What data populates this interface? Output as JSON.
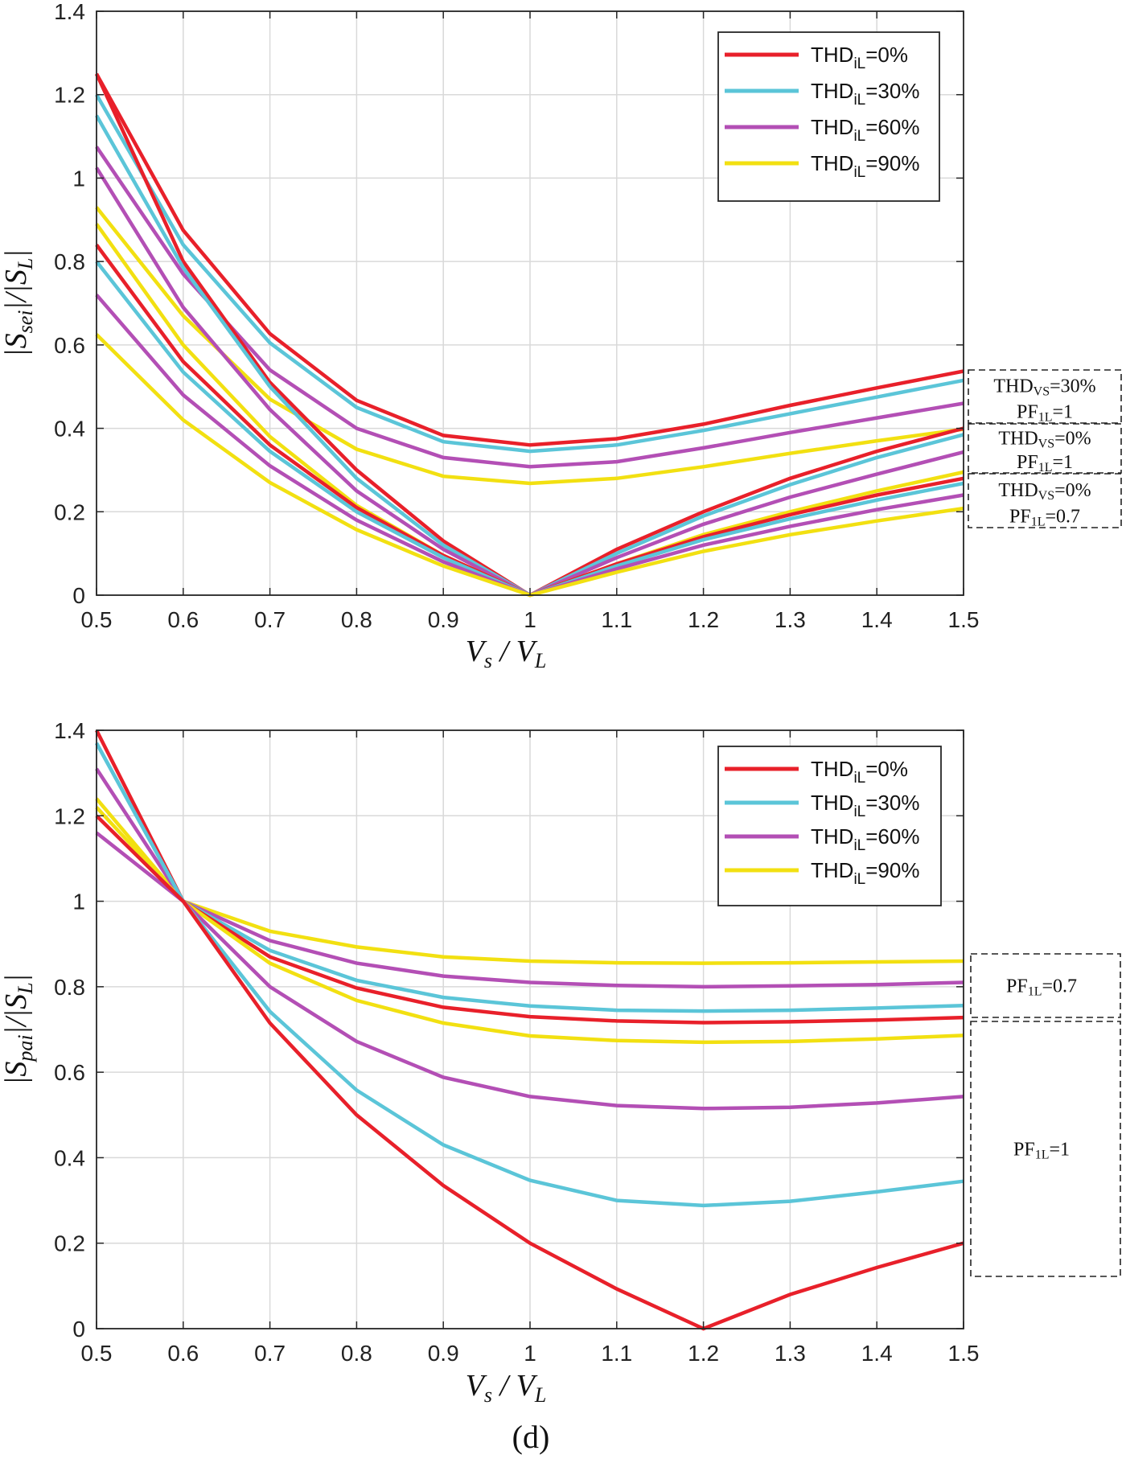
{
  "caption": "(d)",
  "chart_data": [
    {
      "type": "line",
      "xlabel": "V_s / V_L",
      "ylabel": "|S_sei|/|S_L|",
      "xlim": [
        0.5,
        1.5
      ],
      "ylim": [
        0,
        1.4
      ],
      "xticks": [
        "0.5",
        "0.6",
        "0.7",
        "0.8",
        "0.9",
        "1",
        "1.1",
        "1.2",
        "1.3",
        "1.4",
        "1.5"
      ],
      "yticks": [
        "0",
        "0.2",
        "0.4",
        "0.6",
        "0.8",
        "1",
        "1.2",
        "1.4"
      ],
      "grid": true,
      "legend_position": "top-right",
      "legend": [
        {
          "main": "THD",
          "sub": "iL",
          "rest": "=0%",
          "color": "#e8202a"
        },
        {
          "main": "THD",
          "sub": "iL",
          "rest": "=30%",
          "color": "#5bc5d8"
        },
        {
          "main": "THD",
          "sub": "iL",
          "rest": "=60%",
          "color": "#b34fb5"
        },
        {
          "main": "THD",
          "sub": "iL",
          "rest": "=90%",
          "color": "#f2e011"
        }
      ],
      "annotations": [
        {
          "line1_main": "THD",
          "line1_sub": "VS",
          "line1_rest": "=30%",
          "line2_main": "PF",
          "line2_sub": "1L",
          "line2_rest": "=1"
        },
        {
          "line1_main": "THD",
          "line1_sub": "VS",
          "line1_rest": "=0%",
          "line2_main": "PF",
          "line2_sub": "1L",
          "line2_rest": "=1"
        },
        {
          "line1_main": "THD",
          "line1_sub": "VS",
          "line1_rest": "=0%",
          "line2_main": "PF",
          "line2_sub": "1L",
          "line2_rest": "=0.7"
        }
      ],
      "x": [
        0.5,
        0.6,
        0.7,
        0.8,
        0.9,
        1.0,
        1.1,
        1.2,
        1.3,
        1.4,
        1.5
      ],
      "series": [
        {
          "group": "THDvs=30%, PF1L=1",
          "color": "#e8202a",
          "values": [
            1.25,
            0.875,
            0.627,
            0.467,
            0.383,
            0.36,
            0.375,
            0.41,
            0.455,
            0.497,
            0.537
          ]
        },
        {
          "group": "THDvs=30%, PF1L=1",
          "color": "#5bc5d8",
          "values": [
            1.2,
            0.84,
            0.605,
            0.45,
            0.368,
            0.345,
            0.36,
            0.395,
            0.435,
            0.475,
            0.515
          ]
        },
        {
          "group": "THDvs=30%, PF1L=1",
          "color": "#b34fb5",
          "values": [
            1.075,
            0.77,
            0.54,
            0.4,
            0.33,
            0.308,
            0.32,
            0.353,
            0.39,
            0.425,
            0.46
          ]
        },
        {
          "group": "THDvs=30%, PF1L=1",
          "color": "#f2e011",
          "values": [
            0.93,
            0.67,
            0.47,
            0.35,
            0.285,
            0.268,
            0.28,
            0.308,
            0.34,
            0.37,
            0.398
          ]
        },
        {
          "group": "THDvs=0%, PF1L=1",
          "color": "#e8202a",
          "values": [
            1.25,
            0.8,
            0.51,
            0.3,
            0.13,
            0.0,
            0.11,
            0.2,
            0.28,
            0.345,
            0.4
          ]
        },
        {
          "group": "THDvs=0%, PF1L=1",
          "color": "#5bc5d8",
          "values": [
            1.15,
            0.785,
            0.5,
            0.28,
            0.12,
            0.0,
            0.1,
            0.19,
            0.265,
            0.33,
            0.385
          ]
        },
        {
          "group": "THDvs=0%, PF1L=1",
          "color": "#b34fb5",
          "values": [
            1.025,
            0.69,
            0.445,
            0.25,
            0.11,
            0.0,
            0.09,
            0.17,
            0.235,
            0.29,
            0.343
          ]
        },
        {
          "group": "THDvs=0%, PF1L=1",
          "color": "#f2e011",
          "values": [
            0.89,
            0.6,
            0.38,
            0.215,
            0.095,
            0.0,
            0.075,
            0.145,
            0.2,
            0.25,
            0.295
          ]
        },
        {
          "group": "THDvs=0%, PF1L=0.7",
          "color": "#e8202a",
          "values": [
            0.84,
            0.56,
            0.36,
            0.21,
            0.095,
            0.0,
            0.075,
            0.14,
            0.193,
            0.24,
            0.28
          ]
        },
        {
          "group": "THDvs=0%, PF1L=0.7",
          "color": "#5bc5d8",
          "values": [
            0.8,
            0.535,
            0.345,
            0.2,
            0.09,
            0.0,
            0.07,
            0.133,
            0.183,
            0.228,
            0.268
          ]
        },
        {
          "group": "THDvs=0%, PF1L=0.7",
          "color": "#b34fb5",
          "values": [
            0.72,
            0.48,
            0.31,
            0.18,
            0.08,
            0.0,
            0.063,
            0.12,
            0.165,
            0.205,
            0.24
          ]
        },
        {
          "group": "THDvs=0%, PF1L=0.7",
          "color": "#f2e011",
          "values": [
            0.625,
            0.42,
            0.27,
            0.157,
            0.07,
            0.0,
            0.055,
            0.105,
            0.145,
            0.178,
            0.208
          ]
        }
      ]
    },
    {
      "type": "line",
      "xlabel": "V_s / V_L",
      "ylabel": "|S_pai|/|S_L|",
      "xlim": [
        0.5,
        1.5
      ],
      "ylim": [
        0,
        1.4
      ],
      "xticks": [
        "0.5",
        "0.6",
        "0.7",
        "0.8",
        "0.9",
        "1",
        "1.1",
        "1.2",
        "1.3",
        "1.4",
        "1.5"
      ],
      "yticks": [
        "0",
        "0.2",
        "0.4",
        "0.6",
        "0.8",
        "1",
        "1.2",
        "1.4"
      ],
      "grid": true,
      "legend_position": "top-right",
      "legend": [
        {
          "main": "THD",
          "sub": "iL",
          "rest": "=0%",
          "color": "#e8202a"
        },
        {
          "main": "THD",
          "sub": "iL",
          "rest": "=30%",
          "color": "#5bc5d8"
        },
        {
          "main": "THD",
          "sub": "iL",
          "rest": "=60%",
          "color": "#b34fb5"
        },
        {
          "main": "THD",
          "sub": "iL",
          "rest": "=90%",
          "color": "#f2e011"
        }
      ],
      "annotations": [
        {
          "line1_main": "PF",
          "line1_sub": "1L",
          "line1_rest": "=0.7"
        },
        {
          "line1_main": "PF",
          "line1_sub": "1L",
          "line1_rest": "=1"
        }
      ],
      "x": [
        0.5,
        0.6,
        0.7,
        0.8,
        0.9,
        1.0,
        1.1,
        1.2,
        1.3,
        1.4,
        1.5
      ],
      "series": [
        {
          "group": "PF1L=0.7",
          "color": "#f2e011",
          "values": [
            1.24,
            1.0,
            0.93,
            0.893,
            0.87,
            0.86,
            0.856,
            0.855,
            0.856,
            0.858,
            0.86
          ]
        },
        {
          "group": "PF1L=0.7",
          "color": "#b34fb5",
          "values": [
            1.31,
            1.0,
            0.908,
            0.855,
            0.825,
            0.81,
            0.803,
            0.8,
            0.802,
            0.805,
            0.81
          ]
        },
        {
          "group": "PF1L=0.7",
          "color": "#5bc5d8",
          "values": [
            1.37,
            1.0,
            0.885,
            0.815,
            0.775,
            0.755,
            0.745,
            0.743,
            0.745,
            0.75,
            0.756
          ]
        },
        {
          "group": "PF1L=0.7",
          "color": "#e8202a",
          "values": [
            1.4,
            1.0,
            0.87,
            0.797,
            0.752,
            0.73,
            0.72,
            0.716,
            0.718,
            0.722,
            0.728
          ]
        },
        {
          "group": "PF1L=1",
          "color": "#f2e011",
          "values": [
            1.22,
            1.0,
            0.855,
            0.768,
            0.715,
            0.685,
            0.674,
            0.67,
            0.672,
            0.678,
            0.686
          ]
        },
        {
          "group": "PF1L=1",
          "color": "#b34fb5",
          "values": [
            1.16,
            1.0,
            0.8,
            0.672,
            0.588,
            0.543,
            0.522,
            0.515,
            0.518,
            0.528,
            0.543
          ]
        },
        {
          "group": "PF1L=1",
          "color": "#5bc5d8",
          "values": [
            1.37,
            1.0,
            0.742,
            0.558,
            0.43,
            0.347,
            0.3,
            0.288,
            0.298,
            0.32,
            0.345
          ]
        },
        {
          "group": "PF1L=1",
          "color": "#e8202a",
          "values": [
            1.2,
            1.0,
            0.715,
            0.5,
            0.335,
            0.2,
            0.093,
            0.0,
            0.08,
            0.143,
            0.2
          ]
        }
      ]
    }
  ]
}
